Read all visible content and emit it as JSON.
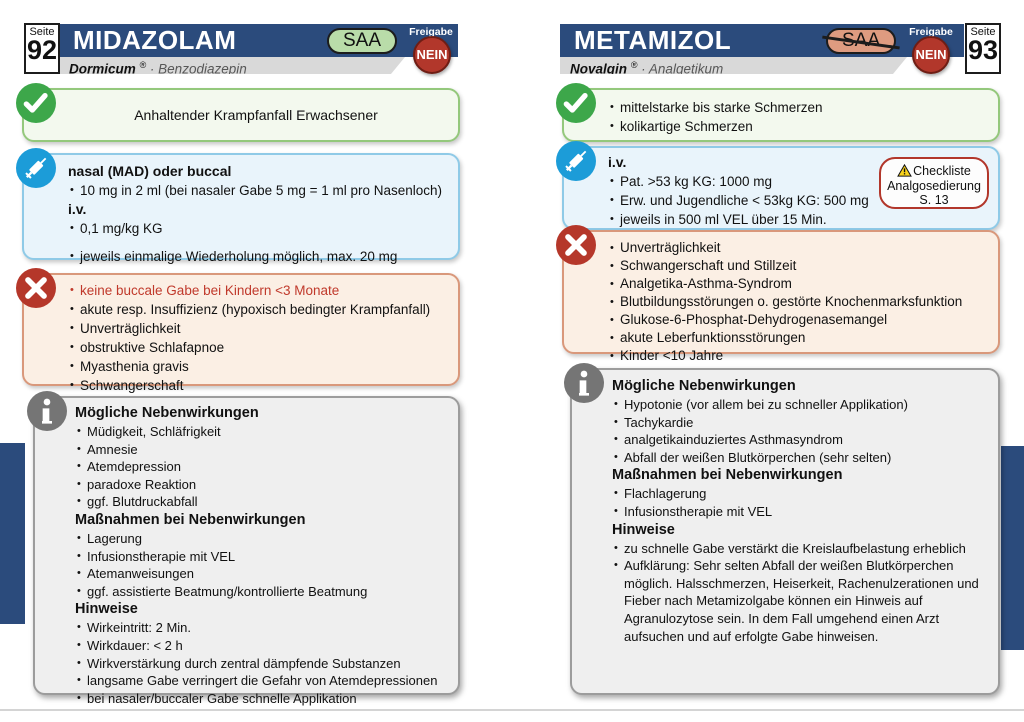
{
  "colors": {
    "navy": "#2b4b7c",
    "saa_green": "#b9dca9",
    "saa_salmon": "#de9b80",
    "nein_red": "#b2372b",
    "indication_green_border": "#94c87c",
    "dosage_blue_border": "#8fcae7",
    "contra_red_border": "#d9987b",
    "info_gray_border": "#9c9c9c",
    "syringe_icon_blue": "#1c9cd8",
    "check_icon_green": "#3da74a"
  },
  "left": {
    "seite_label": "Seite",
    "seite_number": "92",
    "title": "MIDAZOLAM",
    "saa": "SAA",
    "freigabe_label": "Freigabe",
    "freigabe_value": "NEIN",
    "brand": "Dormicum",
    "reg": "®",
    "category": " · Benzodiazepin",
    "indication": "Anhaltender Krampfanfall Erwachsener",
    "dosage": {
      "route1": "nasal (MAD) oder buccal",
      "route1_items": [
        "10 mg in 2 ml (bei nasaler Gabe 5 mg = 1 ml pro Nasenloch)"
      ],
      "route2": "i.v.",
      "route2_items": [
        "0,1 mg/kg KG"
      ],
      "extra_items": [
        "jeweils einmalige Wiederholung möglich, max. 20 mg"
      ]
    },
    "contra": {
      "highlight": "keine buccale Gabe bei Kindern <3 Monate",
      "items": [
        "akute resp. Insuffizienz (hypoxisch bedingter Krampfanfall)",
        "Unverträglichkeit",
        "obstruktive Schlafapnoe",
        "Myasthenia gravis",
        "Schwangerschaft"
      ]
    },
    "info": {
      "s1_heading": "Mögliche Nebenwirkungen",
      "s1_items": [
        "Müdigkeit, Schläfrigkeit",
        "Amnesie",
        "Atemdepression",
        "paradoxe Reaktion",
        "ggf. Blutdruckabfall"
      ],
      "s2_heading": "Maßnahmen bei Nebenwirkungen",
      "s2_items": [
        "Lagerung",
        "Infusionstherapie mit VEL",
        "Atemanweisungen",
        "ggf. assistierte Beatmung/kontrollierte Beatmung"
      ],
      "s3_heading": "Hinweise",
      "s3_items": [
        "Wirkeintritt: 2 Min.",
        "Wirkdauer: < 2 h",
        "Wirkverstärkung durch zentral dämpfende Substanzen",
        "langsame Gabe verringert die Gefahr von Atemdepressionen",
        "bei nasaler/buccaler Gabe schnelle Applikation"
      ]
    }
  },
  "right": {
    "seite_label": "Seite",
    "seite_number": "93",
    "title": "METAMIZOL",
    "saa": "SAA",
    "freigabe_label": "Freigabe",
    "freigabe_value": "NEIN",
    "brand": "Novalgin",
    "reg": "®",
    "category": " · Analgetikum",
    "indication_items": [
      "mittelstarke bis starke Schmerzen",
      "kolikartige Schmerzen"
    ],
    "dosage": {
      "route1": "i.v.",
      "route1_items": [
        "Pat. >53 kg KG: 1000 mg",
        "Erw. und Jugendliche < 53kg KG: 500 mg",
        "jeweils in 500 ml VEL über 15 Min."
      ],
      "checkliste_line1": "Checkliste",
      "checkliste_line2": "Analgosedierung",
      "checkliste_line3": "S. 13"
    },
    "contra": {
      "items": [
        "Unverträglichkeit",
        "Schwangerschaft und Stillzeit",
        "Analgetika-Asthma-Syndrom",
        "Blutbildungsstörungen o. gestörte Knochenmarksfunktion",
        "Glukose-6-Phosphat-Dehydrogenasemangel",
        "akute Leberfunktionsstörungen",
        "Kinder <10 Jahre"
      ]
    },
    "info": {
      "s1_heading": "Mögliche Nebenwirkungen",
      "s1_items": [
        "Hypotonie (vor allem bei zu schneller Applikation)",
        "Tachykardie",
        "analgetikainduziertes Asthmasyndrom",
        "Abfall der weißen Blutkörperchen (sehr selten)"
      ],
      "s2_heading": "Maßnahmen bei Nebenwirkungen",
      "s2_items": [
        "Flachlagerung",
        "Infusionstherapie mit VEL"
      ],
      "s3_heading": "Hinweise",
      "s3_items": [
        "zu schnelle Gabe verstärkt die Kreislaufbelastung erheblich",
        "Aufklärung: Sehr selten Abfall der weißen Blutkörperchen möglich. Halsschmerzen, Heiserkeit, Rachenulzerationen und Fieber nach Metamizolgabe können ein Hinweis auf Agranulozytose sein. In dem Fall umgehend einen Arzt aufsuchen und auf erfolgte Gabe hinweisen."
      ]
    }
  }
}
